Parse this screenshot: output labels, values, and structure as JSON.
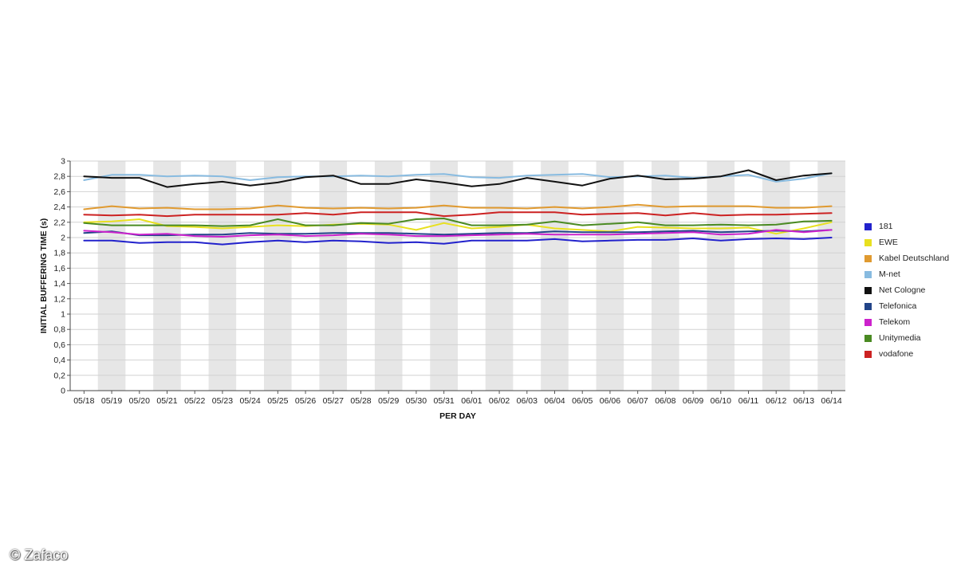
{
  "chart_data": {
    "type": "line",
    "title": "",
    "xlabel": "PER DAY",
    "ylabel": "INITIAL BUFFERING TIME (s)",
    "ylim": [
      0,
      3
    ],
    "yticks": [
      "0",
      "0,2",
      "0,4",
      "0,6",
      "0,8",
      "1",
      "1,2",
      "1,4",
      "1,6",
      "1,8",
      "2",
      "2,2",
      "2,4",
      "2,6",
      "2,8",
      "3"
    ],
    "categories": [
      "05/18",
      "05/19",
      "05/20",
      "05/21",
      "05/22",
      "05/23",
      "05/24",
      "05/25",
      "05/26",
      "05/27",
      "05/28",
      "05/29",
      "05/30",
      "05/31",
      "06/01",
      "06/02",
      "06/03",
      "06/04",
      "06/05",
      "06/06",
      "06/07",
      "06/08",
      "06/09",
      "06/10",
      "06/11",
      "06/12",
      "06/13",
      "06/14"
    ],
    "grid": "alternating vertical bands",
    "legend_position": "right",
    "series": [
      {
        "name": "181",
        "color": "#2222cc",
        "values": [
          1.96,
          1.96,
          1.93,
          1.94,
          1.94,
          1.91,
          1.94,
          1.96,
          1.94,
          1.96,
          1.95,
          1.93,
          1.94,
          1.92,
          1.96,
          1.96,
          1.96,
          1.98,
          1.95,
          1.96,
          1.97,
          1.97,
          1.99,
          1.96,
          1.98,
          1.99,
          1.98,
          2.0
        ]
      },
      {
        "name": "EWE",
        "color": "#e8e020",
        "values": [
          2.2,
          2.21,
          2.24,
          2.15,
          2.14,
          2.12,
          2.14,
          2.16,
          2.15,
          2.17,
          2.18,
          2.17,
          2.1,
          2.19,
          2.12,
          2.14,
          2.17,
          2.12,
          2.1,
          2.08,
          2.14,
          2.13,
          2.12,
          2.12,
          2.13,
          2.05,
          2.12,
          2.2
        ]
      },
      {
        "name": "Kabel Deutschland",
        "color": "#e09a30",
        "values": [
          2.37,
          2.41,
          2.38,
          2.39,
          2.37,
          2.37,
          2.38,
          2.42,
          2.39,
          2.38,
          2.39,
          2.38,
          2.39,
          2.42,
          2.39,
          2.39,
          2.38,
          2.4,
          2.38,
          2.4,
          2.43,
          2.4,
          2.41,
          2.41,
          2.41,
          2.39,
          2.39,
          2.41
        ]
      },
      {
        "name": "M-net",
        "color": "#88bbe0",
        "values": [
          2.75,
          2.82,
          2.82,
          2.8,
          2.81,
          2.8,
          2.75,
          2.79,
          2.8,
          2.8,
          2.81,
          2.8,
          2.82,
          2.83,
          2.79,
          2.78,
          2.81,
          2.82,
          2.83,
          2.79,
          2.8,
          2.81,
          2.78,
          2.8,
          2.82,
          2.73,
          2.77,
          2.84
        ]
      },
      {
        "name": "Net Cologne",
        "color": "#111111",
        "values": [
          2.8,
          2.78,
          2.78,
          2.66,
          2.7,
          2.73,
          2.68,
          2.72,
          2.79,
          2.81,
          2.7,
          2.7,
          2.76,
          2.72,
          2.67,
          2.7,
          2.78,
          2.73,
          2.68,
          2.77,
          2.81,
          2.76,
          2.77,
          2.8,
          2.88,
          2.75,
          2.81,
          2.84
        ]
      },
      {
        "name": "Telefonica",
        "color": "#224488",
        "values": [
          2.06,
          2.08,
          2.03,
          2.03,
          2.04,
          2.04,
          2.06,
          2.05,
          2.05,
          2.06,
          2.06,
          2.06,
          2.05,
          2.04,
          2.05,
          2.06,
          2.06,
          2.08,
          2.07,
          2.07,
          2.07,
          2.08,
          2.09,
          2.07,
          2.08,
          2.09,
          2.08,
          2.1
        ]
      },
      {
        "name": "Telekom",
        "color": "#cc22cc",
        "values": [
          2.09,
          2.07,
          2.04,
          2.05,
          2.02,
          2.01,
          2.03,
          2.04,
          2.02,
          2.03,
          2.05,
          2.04,
          2.02,
          2.02,
          2.03,
          2.04,
          2.05,
          2.04,
          2.04,
          2.04,
          2.05,
          2.06,
          2.07,
          2.04,
          2.05,
          2.1,
          2.07,
          2.1
        ]
      },
      {
        "name": "Unitymedia",
        "color": "#4a8a22",
        "values": [
          2.19,
          2.16,
          2.16,
          2.16,
          2.16,
          2.15,
          2.16,
          2.24,
          2.16,
          2.16,
          2.19,
          2.18,
          2.24,
          2.25,
          2.16,
          2.16,
          2.17,
          2.21,
          2.16,
          2.18,
          2.2,
          2.16,
          2.16,
          2.17,
          2.16,
          2.17,
          2.21,
          2.22
        ]
      },
      {
        "name": "vodafone",
        "color": "#cc2222",
        "values": [
          2.3,
          2.29,
          2.3,
          2.28,
          2.3,
          2.3,
          2.3,
          2.3,
          2.32,
          2.3,
          2.33,
          2.33,
          2.33,
          2.28,
          2.3,
          2.33,
          2.33,
          2.33,
          2.3,
          2.31,
          2.32,
          2.29,
          2.32,
          2.29,
          2.3,
          2.3,
          2.31,
          2.32
        ]
      }
    ]
  },
  "watermark": "© Zafaco"
}
